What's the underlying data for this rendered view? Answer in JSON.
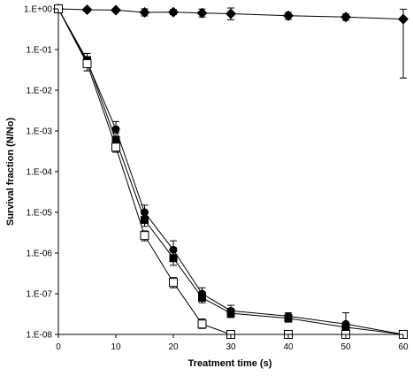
{
  "chart_data": {
    "type": "scatter",
    "title": "",
    "xlabel": "Treatment time (s)",
    "ylabel": "Survival fraction (N/No)",
    "x_ticks": [
      0,
      10,
      20,
      30,
      40,
      50,
      60
    ],
    "y_ticks": [
      {
        "value": 1,
        "label": "1.E+00"
      },
      {
        "value": 0.1,
        "label": "1.E-01"
      },
      {
        "value": 0.01,
        "label": "1.E-02"
      },
      {
        "value": 0.001,
        "label": "1.E-03"
      },
      {
        "value": 0.0001,
        "label": "1.E-04"
      },
      {
        "value": 1e-05,
        "label": "1.E-05"
      },
      {
        "value": 1e-06,
        "label": "1.E-06"
      },
      {
        "value": 1e-07,
        "label": "1.E-07"
      },
      {
        "value": 1e-08,
        "label": "1.E-08"
      }
    ],
    "xlim": [
      0,
      60
    ],
    "ylim": [
      1e-08,
      1
    ],
    "y_scale": "log",
    "grid": false,
    "series": [
      {
        "marker": "diamond-filled",
        "color": "#000000",
        "points": [
          {
            "x": 0,
            "y": 1.0,
            "lo": 1.0,
            "hi": 1.0
          },
          {
            "x": 5,
            "y": 0.95,
            "lo": 0.87,
            "hi": 1.03
          },
          {
            "x": 10,
            "y": 0.93,
            "lo": 0.85,
            "hi": 1.01
          },
          {
            "x": 15,
            "y": 0.82,
            "lo": 0.67,
            "hi": 1.0
          },
          {
            "x": 20,
            "y": 0.83,
            "lo": 0.72,
            "hi": 0.96
          },
          {
            "x": 25,
            "y": 0.79,
            "lo": 0.63,
            "hi": 0.99
          },
          {
            "x": 30,
            "y": 0.76,
            "lo": 0.54,
            "hi": 1.05
          },
          {
            "x": 40,
            "y": 0.68,
            "lo": 0.55,
            "hi": 0.82
          },
          {
            "x": 50,
            "y": 0.63,
            "lo": 0.52,
            "hi": 0.75
          },
          {
            "x": 60,
            "y": 0.56,
            "lo": 0.02,
            "hi": 0.98
          }
        ]
      },
      {
        "marker": "circle-filled",
        "color": "#000000",
        "points": [
          {
            "x": 0,
            "y": 1.0,
            "lo": 1.0,
            "hi": 1.0
          },
          {
            "x": 5,
            "y": 0.05,
            "lo": 0.03,
            "hi": 0.08
          },
          {
            "x": 10,
            "y": 0.0011,
            "lo": 0.0007,
            "hi": 0.0017
          },
          {
            "x": 15,
            "y": 1e-05,
            "lo": 7e-06,
            "hi": 1.5e-05
          },
          {
            "x": 20,
            "y": 1.2e-06,
            "lo": 8e-07,
            "hi": 2e-06
          },
          {
            "x": 25,
            "y": 1e-07,
            "lo": 7e-08,
            "hi": 1.4e-07
          },
          {
            "x": 30,
            "y": 3.8e-08,
            "lo": 2.8e-08,
            "hi": 5.2e-08
          },
          {
            "x": 40,
            "y": 2.8e-08,
            "lo": 2.2e-08,
            "hi": 3.4e-08
          },
          {
            "x": 50,
            "y": 1.8e-08,
            "lo": 1.2e-08,
            "hi": 3.4e-08
          },
          {
            "x": 60,
            "y": 1e-08,
            "lo": 1e-08,
            "hi": 1e-08
          }
        ]
      },
      {
        "marker": "square-filled",
        "color": "#000000",
        "points": [
          {
            "x": 0,
            "y": 1.0,
            "lo": 1.0,
            "hi": 1.0
          },
          {
            "x": 5,
            "y": 0.055,
            "lo": 0.04,
            "hi": 0.08
          },
          {
            "x": 10,
            "y": 0.0006,
            "lo": 0.0004,
            "hi": 0.0009
          },
          {
            "x": 15,
            "y": 6.5e-06,
            "lo": 4.5e-06,
            "hi": 9e-06
          },
          {
            "x": 20,
            "y": 7.5e-07,
            "lo": 5e-07,
            "hi": 1.1e-06
          },
          {
            "x": 25,
            "y": 8e-08,
            "lo": 6e-08,
            "hi": 1.1e-07
          },
          {
            "x": 30,
            "y": 3.3e-08,
            "lo": 2.6e-08,
            "hi": 4.3e-08
          },
          {
            "x": 40,
            "y": 2.5e-08,
            "lo": 2e-08,
            "hi": 3e-08
          },
          {
            "x": 50,
            "y": 1.5e-08,
            "lo": 1.2e-08,
            "hi": 1.9e-08
          },
          {
            "x": 60,
            "y": 1e-08,
            "lo": 1e-08,
            "hi": 1e-08
          }
        ]
      },
      {
        "marker": "square-open",
        "color": "#000000",
        "points": [
          {
            "x": 0,
            "y": 1.0,
            "lo": 1.0,
            "hi": 1.0
          },
          {
            "x": 5,
            "y": 0.045,
            "lo": 0.03,
            "hi": 0.06
          },
          {
            "x": 10,
            "y": 0.0004,
            "lo": 0.0003,
            "hi": 0.0006
          },
          {
            "x": 15,
            "y": 2.7e-06,
            "lo": 2e-06,
            "hi": 3.5e-06
          },
          {
            "x": 20,
            "y": 1.9e-07,
            "lo": 1.4e-07,
            "hi": 2.5e-07
          },
          {
            "x": 25,
            "y": 1.8e-08,
            "lo": 1.4e-08,
            "hi": 2.4e-08
          },
          {
            "x": 30,
            "y": 1e-08,
            "lo": 1e-08,
            "hi": 1e-08
          },
          {
            "x": 40,
            "y": 1e-08,
            "lo": 1e-08,
            "hi": 1e-08
          },
          {
            "x": 50,
            "y": 1e-08,
            "lo": 1e-08,
            "hi": 1e-08
          },
          {
            "x": 60,
            "y": 1e-08,
            "lo": 1e-08,
            "hi": 1e-08
          }
        ]
      }
    ]
  }
}
